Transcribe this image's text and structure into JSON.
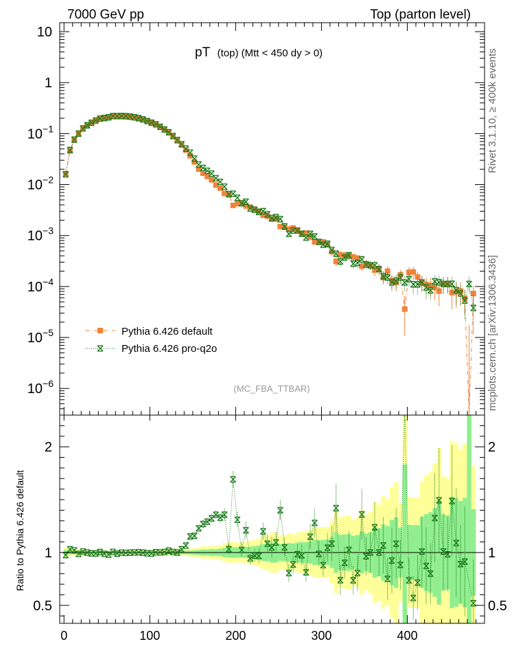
{
  "header": {
    "energy_label": "7000 GeV pp",
    "process_label": "Top (parton level)"
  },
  "side_labels": {
    "rivet": "Rivet 3.1.10, ≥ 400k events",
    "mcplots": "mcplots.cern.ch [arXiv:1306.3436]"
  },
  "chart_data": {
    "type": "line",
    "title_main": "pT",
    "title_sub": "(top) (Mtt < 450 dy > 0)",
    "analysis_id": "(MC_FBA_TTBAR)",
    "xlabel": "",
    "xlim": [
      -5,
      490
    ],
    "x_ticks": [
      0,
      100,
      200,
      300,
      400
    ],
    "top_panel": {
      "yscale": "log",
      "ylim": [
        3e-07,
        15
      ],
      "y_tick_labels": [
        "10",
        "1",
        "10^-1",
        "10^-2",
        "10^-3",
        "10^-4",
        "10^-5",
        "10^-6"
      ],
      "x": [
        2,
        7,
        12,
        17,
        22,
        27,
        32,
        37,
        42,
        47,
        52,
        57,
        62,
        67,
        72,
        77,
        82,
        87,
        92,
        97,
        102,
        107,
        112,
        117,
        122,
        127,
        132,
        137,
        142,
        147,
        152,
        157,
        162,
        167,
        172,
        177,
        182,
        187,
        192,
        197,
        202,
        207,
        212,
        217,
        222,
        227,
        232,
        237,
        242,
        247,
        252,
        257,
        262,
        267,
        272,
        277,
        282,
        287,
        292,
        297,
        302,
        307,
        312,
        317,
        322,
        327,
        332,
        337,
        342,
        347,
        352,
        357,
        362,
        367,
        372,
        377,
        382,
        387,
        392,
        397,
        402,
        407,
        412,
        417,
        422,
        427,
        432,
        437,
        442,
        447,
        452,
        457,
        462,
        467,
        472,
        477
      ],
      "series": [
        {
          "name": "Pythia 6.426 default",
          "color": "#f0843c",
          "marker": "square",
          "values": [
            0.0163,
            0.0462,
            0.0747,
            0.1011,
            0.1252,
            0.1457,
            0.1644,
            0.1822,
            0.1957,
            0.2051,
            0.2129,
            0.2194,
            0.2223,
            0.2217,
            0.2202,
            0.2156,
            0.2088,
            0.2003,
            0.1901,
            0.1778,
            0.1653,
            0.1519,
            0.1359,
            0.1201,
            0.1045,
            0.089,
            0.0744,
            0.06,
            0.0475,
            0.0367,
            0.0278,
            0.0201,
            0.0167,
            0.0144,
            0.0124,
            0.0098,
            0.0085,
            0.0067,
            0.0063,
            0.0039,
            0.0042,
            0.0042,
            0.0038,
            0.0036,
            0.0033,
            0.003,
            0.0025,
            0.0024,
            0.0021,
            0.0021,
            0.0015,
            0.00144,
            0.00134,
            0.00141,
            0.00127,
            0.00111,
            0.00112,
            0.00094,
            0.00075,
            0.00076,
            0.00075,
            0.00066,
            0.00048,
            0.00031,
            0.00042,
            0.00041,
            0.0004,
            0.00038,
            0.00036,
            0.00025,
            0.00028,
            0.00026,
            0.00021,
            0.00022,
            0.00015,
            0.0002,
            0.00013,
            0.00012,
            0.00017,
            3.6e-05,
            0.00019,
            0.000193,
            0.000154,
            0.000119,
            0.00011,
            0.000105,
            9.5e-05,
            8.1e-05,
            0.000111,
            0.000114,
            7.6e-05,
            7.8e-05,
            8.2e-05,
            5.8e-05,
            1e-07,
            7.3e-05
          ],
          "errors": [
            0.0004,
            0.0008,
            0.001,
            0.0013,
            0.0015,
            0.0016,
            0.0017,
            0.0018,
            0.0018,
            0.0019,
            0.0019,
            0.0019,
            0.0019,
            0.0019,
            0.0019,
            0.0019,
            0.0019,
            0.0018,
            0.0018,
            0.0017,
            0.0017,
            0.0016,
            0.0015,
            0.0014,
            0.0013,
            0.0012,
            0.0011,
            0.001,
            0.0008,
            0.0007,
            0.0006,
            0.0005,
            0.0005,
            0.0004,
            0.0004,
            0.0003,
            0.0003,
            0.0003,
            0.0003,
            0.0002,
            0.0002,
            0.0002,
            0.0002,
            0.0002,
            0.0002,
            0.0002,
            0.0002,
            0.0002,
            0.0002,
            0.0002,
            0.00012,
            0.00012,
            0.00012,
            0.00012,
            0.00012,
            0.00011,
            0.00011,
            0.0001,
            9e-05,
            9e-05,
            9e-05,
            8e-05,
            7e-05,
            6e-05,
            7e-05,
            7e-05,
            7e-05,
            6e-05,
            6e-05,
            5e-05,
            5e-05,
            5e-05,
            5e-05,
            5e-05,
            4e-05,
            5e-05,
            4e-05,
            4e-05,
            4e-05,
            3e-05,
            5e-05,
            5e-05,
            4e-05,
            4e-05,
            4e-05,
            4e-05,
            4e-05,
            4e-05,
            4e-05,
            4e-05,
            4e-05,
            4e-05,
            4e-05,
            3e-05,
            0.0,
            3e-05
          ]
        },
        {
          "name": "Pythia 6.426 pro-q2o",
          "color": "#1a7a1a",
          "marker": "star",
          "values": [
            0.0159,
            0.0476,
            0.0762,
            0.0998,
            0.1264,
            0.1456,
            0.1631,
            0.1806,
            0.1965,
            0.2025,
            0.2086,
            0.2206,
            0.2198,
            0.2214,
            0.2194,
            0.2153,
            0.2089,
            0.2008,
            0.1898,
            0.1765,
            0.1637,
            0.1523,
            0.1361,
            0.1206,
            0.1063,
            0.0894,
            0.0744,
            0.0618,
            0.0506,
            0.0423,
            0.0322,
            0.0247,
            0.0212,
            0.0186,
            0.0164,
            0.0133,
            0.0113,
            0.0091,
            0.0065,
            0.0066,
            0.0055,
            0.0043,
            0.0046,
            0.0034,
            0.0032,
            0.0029,
            0.003,
            0.0026,
            0.0022,
            0.0023,
            0.0021,
            0.00151,
            0.00108,
            0.00125,
            0.00125,
            0.00108,
            0.00091,
            0.00108,
            0.00096,
            0.00075,
            0.00066,
            0.00069,
            0.00052,
            0.00044,
            0.00031,
            0.00037,
            0.00041,
            0.00028,
            0.00029,
            0.00034,
            0.00027,
            0.00026,
            0.00026,
            0.00022,
            0.00016,
            0.00015,
            0.00012,
            0.00013,
            0.00015,
            0.00012,
            0.00014,
            0.00011,
            0.00011,
            0.00012,
            9.6e-05,
            8.4e-05,
            0.000126,
            0.000121,
            0.000112,
            0.000112,
            0.000113,
            8.5e-05,
            7.3e-05,
            5.3e-05,
            0.000112,
            3.8e-05
          ],
          "errors": [
            0.0004,
            0.0008,
            0.001,
            0.0012,
            0.0014,
            0.0016,
            0.0017,
            0.0018,
            0.0018,
            0.0019,
            0.0019,
            0.0019,
            0.0019,
            0.0019,
            0.0019,
            0.0019,
            0.0019,
            0.0018,
            0.0018,
            0.0017,
            0.0017,
            0.0016,
            0.0015,
            0.0014,
            0.0013,
            0.0012,
            0.0011,
            0.001,
            0.0009,
            0.0008,
            0.0007,
            0.0006,
            0.0006,
            0.0005,
            0.0005,
            0.0004,
            0.0004,
            0.0004,
            0.0003,
            0.0003,
            0.0003,
            0.0003,
            0.0003,
            0.0002,
            0.0002,
            0.0002,
            0.0002,
            0.0002,
            0.0002,
            0.0002,
            0.00014,
            0.00013,
            0.00011,
            0.00012,
            0.00012,
            0.00011,
            0.0001,
            0.00011,
            0.0001,
            9e-05,
            8e-05,
            9e-05,
            8e-05,
            7e-05,
            6e-05,
            6e-05,
            7e-05,
            5e-05,
            6e-05,
            6e-05,
            5e-05,
            5e-05,
            5e-05,
            5e-05,
            4e-05,
            4e-05,
            4e-05,
            4e-05,
            4e-05,
            4e-05,
            4e-05,
            4e-05,
            4e-05,
            4e-05,
            4e-05,
            3e-05,
            4e-05,
            4e-05,
            4e-05,
            4e-05,
            4e-05,
            4e-05,
            3e-05,
            3e-05,
            4e-05,
            3e-05
          ]
        }
      ]
    },
    "ratio_panel": {
      "ylabel": "Ratio to Pythia 6.426 default",
      "ylim": [
        0.33,
        2.3
      ],
      "y_ticks": [
        0.5,
        1,
        2
      ],
      "y_tick_labels": [
        "0.5",
        "1",
        "2"
      ],
      "band_colors": {
        "inner": "#90ee90",
        "outer": "#ffff99"
      }
    },
    "legend": [
      {
        "label": "Pythia 6.426 default",
        "series": 0
      },
      {
        "label": "Pythia 6.426 pro-q2o",
        "series": 1
      }
    ],
    "legend_position": "lower-left"
  }
}
